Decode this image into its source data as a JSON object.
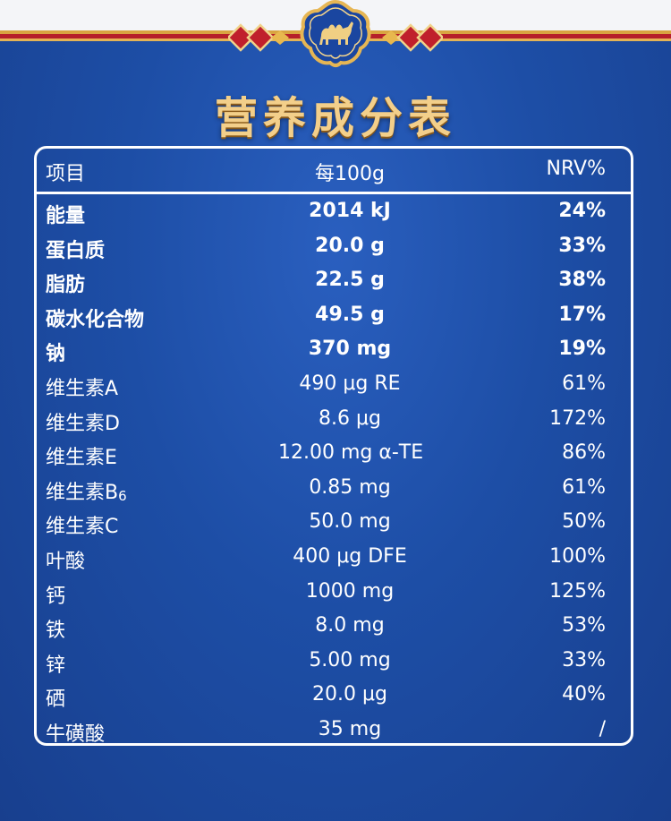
{
  "title": "营养成分表",
  "colors": {
    "background": "#1d4ea6",
    "title": "#f3cf8a",
    "accent_red": "#b61f2a",
    "accent_gold": "#d9a441"
  },
  "icons": {
    "emblem": "camel-emblem-icon",
    "ornament": "red-diamond-ornament-icon"
  },
  "table": {
    "headers": {
      "item": "项目",
      "per100g": "每100g",
      "nrv": "NRV%"
    },
    "rows": [
      {
        "item": "能量",
        "value": "2014 kJ",
        "nrv": "24%"
      },
      {
        "item": "蛋白质",
        "value": "20.0 g",
        "nrv": "33%"
      },
      {
        "item": "脂肪",
        "value": "22.5 g",
        "nrv": "38%"
      },
      {
        "item": "碳水化合物",
        "value": "49.5 g",
        "nrv": "17%"
      },
      {
        "item": "钠",
        "value": "370 mg",
        "nrv": "19%"
      },
      {
        "item": "维生素A",
        "value": "490 μg RE",
        "nrv": "61%"
      },
      {
        "item": "维生素D",
        "value": "8.6 μg",
        "nrv": "172%"
      },
      {
        "item": "维生素E",
        "value": "12.00 mg α-TE",
        "nrv": "86%"
      },
      {
        "item": "维生素B",
        "item_sub": "6",
        "value": "0.85 mg",
        "nrv": "61%"
      },
      {
        "item": "维生素C",
        "value": "50.0 mg",
        "nrv": "50%"
      },
      {
        "item": "叶酸",
        "value": "400 μg DFE",
        "nrv": "100%"
      },
      {
        "item": "钙",
        "value": "1000 mg",
        "nrv": "125%"
      },
      {
        "item": "铁",
        "value": "8.0 mg",
        "nrv": "53%"
      },
      {
        "item": "锌",
        "value": "5.00 mg",
        "nrv": "33%"
      },
      {
        "item": "硒",
        "value": "20.0 μg",
        "nrv": "40%"
      },
      {
        "item": "牛磺酸",
        "value": "35 mg",
        "nrv": "/"
      }
    ]
  }
}
